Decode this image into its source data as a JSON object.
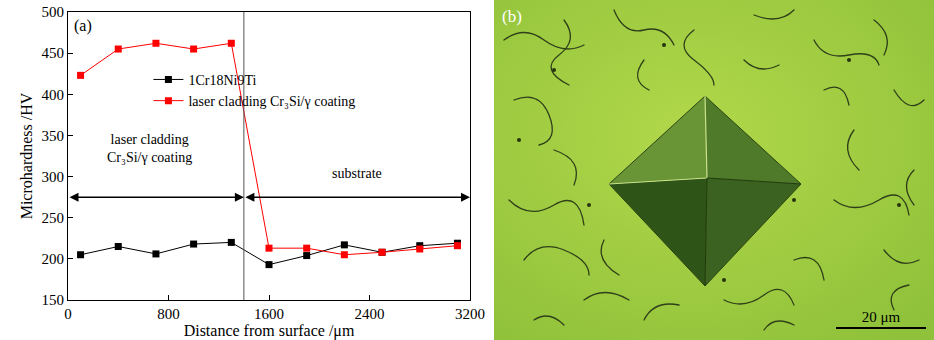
{
  "chart_data": {
    "type": "line",
    "panel_label": "(a)",
    "x_label": "Distance from surface /μm",
    "y_label": "Microhardness /HV",
    "xlim": [
      0,
      3200
    ],
    "xticks": [
      0,
      800,
      1600,
      2400,
      3200
    ],
    "ylim": [
      150,
      500
    ],
    "yticks": [
      150,
      200,
      250,
      300,
      350,
      400,
      450,
      500
    ],
    "legend": "upper left",
    "marker": "square",
    "x": [
      100,
      400,
      700,
      1000,
      1300,
      1600,
      1900,
      2200,
      2500,
      2800,
      3100
    ],
    "series": [
      {
        "name": "1Cr18Ni9Ti",
        "color": "#000000",
        "values": [
          205,
          215,
          206,
          218,
          220,
          193,
          204,
          217,
          208,
          216,
          219
        ]
      },
      {
        "name": "laser cladding Cr₃Si/γ coating",
        "color": "#ff0000",
        "values": [
          423,
          455,
          462,
          455,
          462,
          213,
          213,
          205,
          208,
          212,
          216
        ]
      }
    ],
    "boundary_x": 1400,
    "annotations": [
      {
        "text": [
          "laser cladding",
          "Cr₃Si/γ coating"
        ],
        "x": 650,
        "y": 312,
        "arrow_x": [
          0,
          1400
        ],
        "arrow_y": 275
      },
      {
        "text": [
          "substrate"
        ],
        "x": 2300,
        "y": 292,
        "arrow_x": [
          1400,
          3200
        ],
        "arrow_y": 275
      }
    ]
  },
  "micrograph": {
    "label": "(b)",
    "scale_bar": "20 μm"
  }
}
